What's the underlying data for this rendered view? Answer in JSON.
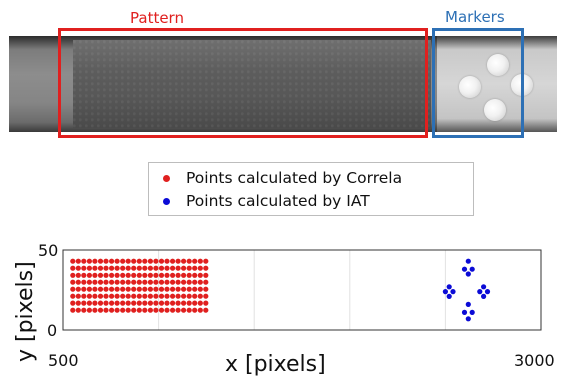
{
  "annotations": {
    "pattern_label": "Pattern",
    "markers_label": "Markers"
  },
  "colors": {
    "pattern_box": "#e0201f",
    "markers_box": "#2d70b5",
    "correla_points": "#e0201f",
    "iat_points": "#0b0bd6"
  },
  "legend": {
    "items": [
      {
        "label": "Points calculated by Correla",
        "color": "#e0201f"
      },
      {
        "label": "Points calculated by IAT",
        "color": "#0b0bd6"
      }
    ]
  },
  "chart_data": {
    "type": "scatter",
    "xlabel": "x [pixels]",
    "ylabel": "y [pixels]",
    "xlim": [
      500,
      3000
    ],
    "ylim": [
      0,
      50
    ],
    "x_tick_labels": [
      "500",
      "3000"
    ],
    "y_tick_labels": [
      "0",
      "50"
    ],
    "grid": true,
    "series": [
      {
        "name": "Points calculated by Correla",
        "color": "#e0201f",
        "grid_points": {
          "x_start": 551,
          "x_step": 29,
          "x_count": 25,
          "y_values": [
            12.4,
            16.8,
            21.1,
            25.5,
            29.9,
            34.2,
            38.6,
            43.0
          ]
        }
      },
      {
        "name": "Points calculated by IAT",
        "color": "#0b0bd6",
        "points": [
          [
            2620,
            43
          ],
          [
            2620,
            35
          ],
          [
            2600,
            38
          ],
          [
            2640,
            38
          ],
          [
            2700,
            27
          ],
          [
            2700,
            21
          ],
          [
            2680,
            24
          ],
          [
            2720,
            24
          ],
          [
            2520,
            27
          ],
          [
            2520,
            21
          ],
          [
            2500,
            24
          ],
          [
            2540,
            24
          ],
          [
            2620,
            16
          ],
          [
            2620,
            7
          ],
          [
            2600,
            11
          ],
          [
            2640,
            11
          ]
        ]
      }
    ]
  }
}
